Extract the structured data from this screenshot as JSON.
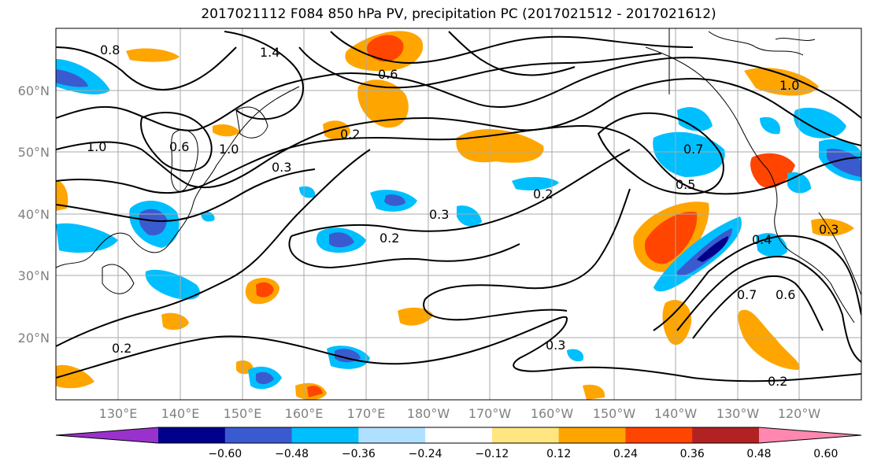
{
  "title": "2017021112 F084 850 hPa PV, precipitation PC (2017021512 - 2017021612)",
  "lat_labels": [
    "60°N",
    "50°N",
    "40°N",
    "30°N",
    "20°N"
  ],
  "lon_labels": [
    "130°E",
    "140°E",
    "150°E",
    "160°E",
    "170°E",
    "180°W",
    "170°W",
    "160°W",
    "150°W",
    "140°W",
    "130°W",
    "120°W"
  ],
  "contour_labels": [
    "0.8",
    "1.0",
    "1.4",
    "0.6",
    "0.2",
    "0.3",
    "0.2",
    "0.2",
    "0.3",
    "0.2",
    "0.5",
    "0.7",
    "0.4",
    "0.7",
    "0.6",
    "0.3",
    "0.2",
    "1.0",
    "0.6",
    "0.3",
    "1.0"
  ],
  "colorbar": {
    "ticks": [
      "−0.60",
      "−0.48",
      "−0.36",
      "−0.24",
      "−0.12",
      "0.12",
      "0.24",
      "0.36",
      "0.48",
      "0.60"
    ],
    "colors": [
      "#9932cc",
      "#00008b",
      "#3a5bd0",
      "#00bfff",
      "#b0e0ff",
      "#ffffff",
      "#ffe680",
      "#ffa500",
      "#ff4500",
      "#b22222",
      "#ff88b0"
    ]
  }
}
